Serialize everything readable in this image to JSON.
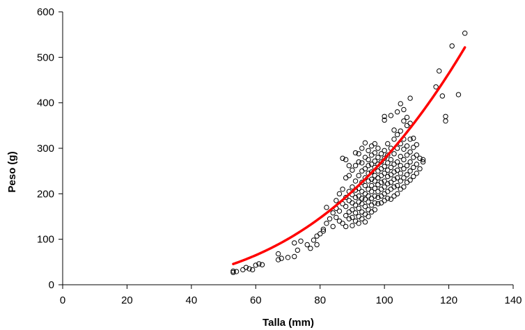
{
  "chart_data": {
    "type": "scatter",
    "title": "",
    "xlabel": "Talla (mm)",
    "ylabel": "Peso (g)",
    "xlim": [
      0,
      140
    ],
    "ylim": [
      0,
      600
    ],
    "xticks": [
      0,
      20,
      40,
      60,
      80,
      100,
      120,
      140
    ],
    "yticks": [
      0,
      100,
      200,
      300,
      400,
      500,
      600
    ],
    "grid": false,
    "legend": "none",
    "colors": {
      "points": "#000000",
      "trend": "#ff0000"
    },
    "series": [
      {
        "kind": "points",
        "marker": "open-circle",
        "points": [
          [
            53,
            27
          ],
          [
            53,
            30
          ],
          [
            54,
            29
          ],
          [
            56,
            33
          ],
          [
            57,
            38
          ],
          [
            58,
            35
          ],
          [
            59,
            33
          ],
          [
            60,
            43
          ],
          [
            61,
            46
          ],
          [
            62,
            44
          ],
          [
            67,
            55
          ],
          [
            67,
            68
          ],
          [
            68,
            58
          ],
          [
            70,
            60
          ],
          [
            72,
            62
          ],
          [
            72,
            92
          ],
          [
            73,
            76
          ],
          [
            74,
            96
          ],
          [
            76,
            88
          ],
          [
            77,
            80
          ],
          [
            78,
            98
          ],
          [
            79,
            88
          ],
          [
            79,
            107
          ],
          [
            80,
            112
          ],
          [
            81,
            122
          ],
          [
            81,
            118
          ],
          [
            82,
            135
          ],
          [
            82,
            170
          ],
          [
            83,
            145
          ],
          [
            84,
            128
          ],
          [
            84,
            158
          ],
          [
            85,
            148
          ],
          [
            85,
            168
          ],
          [
            85,
            185
          ],
          [
            86,
            140
          ],
          [
            86,
            162
          ],
          [
            86,
            200
          ],
          [
            87,
            135
          ],
          [
            87,
            178
          ],
          [
            87,
            210
          ],
          [
            87,
            278
          ],
          [
            88,
            128
          ],
          [
            88,
            152
          ],
          [
            88,
            172
          ],
          [
            88,
            192
          ],
          [
            88,
            235
          ],
          [
            88,
            275
          ],
          [
            89,
            145
          ],
          [
            89,
            160
          ],
          [
            89,
            185
          ],
          [
            89,
            205
          ],
          [
            89,
            240
          ],
          [
            89,
            262
          ],
          [
            90,
            130
          ],
          [
            90,
            148
          ],
          [
            90,
            165
          ],
          [
            90,
            180
          ],
          [
            90,
            198
          ],
          [
            90,
            215
          ],
          [
            90,
            252
          ],
          [
            91,
            140
          ],
          [
            91,
            158
          ],
          [
            91,
            175
          ],
          [
            91,
            192
          ],
          [
            91,
            208
          ],
          [
            91,
            228
          ],
          [
            91,
            262
          ],
          [
            91,
            290
          ],
          [
            92,
            135
          ],
          [
            92,
            150
          ],
          [
            92,
            168
          ],
          [
            92,
            182
          ],
          [
            92,
            195
          ],
          [
            92,
            212
          ],
          [
            92,
            240
          ],
          [
            92,
            270
          ],
          [
            92,
            288
          ],
          [
            93,
            145
          ],
          [
            93,
            160
          ],
          [
            93,
            178
          ],
          [
            93,
            190
          ],
          [
            93,
            205
          ],
          [
            93,
            225
          ],
          [
            93,
            250
          ],
          [
            93,
            268
          ],
          [
            93,
            300
          ],
          [
            94,
            138
          ],
          [
            94,
            155
          ],
          [
            94,
            172
          ],
          [
            94,
            188
          ],
          [
            94,
            200
          ],
          [
            94,
            218
          ],
          [
            94,
            235
          ],
          [
            94,
            255
          ],
          [
            94,
            280
          ],
          [
            94,
            312
          ],
          [
            95,
            150
          ],
          [
            95,
            165
          ],
          [
            95,
            182
          ],
          [
            95,
            195
          ],
          [
            95,
            210
          ],
          [
            95,
            228
          ],
          [
            95,
            245
          ],
          [
            95,
            262
          ],
          [
            95,
            275
          ],
          [
            95,
            295
          ],
          [
            96,
            160
          ],
          [
            96,
            175
          ],
          [
            96,
            190
          ],
          [
            96,
            205
          ],
          [
            96,
            218
          ],
          [
            96,
            232
          ],
          [
            96,
            248
          ],
          [
            96,
            265
          ],
          [
            96,
            285
          ],
          [
            96,
            305
          ],
          [
            97,
            165
          ],
          [
            97,
            180
          ],
          [
            97,
            195
          ],
          [
            97,
            212
          ],
          [
            97,
            228
          ],
          [
            97,
            240
          ],
          [
            97,
            258
          ],
          [
            97,
            272
          ],
          [
            97,
            290
          ],
          [
            97,
            310
          ],
          [
            98,
            178
          ],
          [
            98,
            192
          ],
          [
            98,
            205
          ],
          [
            98,
            220
          ],
          [
            98,
            235
          ],
          [
            98,
            250
          ],
          [
            98,
            265
          ],
          [
            98,
            280
          ],
          [
            98,
            300
          ],
          [
            99,
            180
          ],
          [
            99,
            195
          ],
          [
            99,
            210
          ],
          [
            99,
            225
          ],
          [
            99,
            240
          ],
          [
            99,
            255
          ],
          [
            99,
            270
          ],
          [
            99,
            288
          ],
          [
            100,
            185
          ],
          [
            100,
            200
          ],
          [
            100,
            215
          ],
          [
            100,
            228
          ],
          [
            100,
            245
          ],
          [
            100,
            260
          ],
          [
            100,
            278
          ],
          [
            100,
            295
          ],
          [
            100,
            362
          ],
          [
            100,
            370
          ],
          [
            101,
            190
          ],
          [
            101,
            205
          ],
          [
            101,
            222
          ],
          [
            101,
            238
          ],
          [
            101,
            252
          ],
          [
            101,
            268
          ],
          [
            101,
            285
          ],
          [
            101,
            310
          ],
          [
            102,
            188
          ],
          [
            102,
            210
          ],
          [
            102,
            225
          ],
          [
            102,
            242
          ],
          [
            102,
            258
          ],
          [
            102,
            275
          ],
          [
            102,
            300
          ],
          [
            102,
            372
          ],
          [
            103,
            195
          ],
          [
            103,
            215
          ],
          [
            103,
            232
          ],
          [
            103,
            248
          ],
          [
            103,
            265
          ],
          [
            103,
            288
          ],
          [
            103,
            320
          ],
          [
            103,
            340
          ],
          [
            104,
            200
          ],
          [
            104,
            218
          ],
          [
            104,
            235
          ],
          [
            104,
            252
          ],
          [
            104,
            270
          ],
          [
            104,
            300
          ],
          [
            104,
            330
          ],
          [
            104,
            380
          ],
          [
            105,
            210
          ],
          [
            105,
            228
          ],
          [
            105,
            245
          ],
          [
            105,
            262
          ],
          [
            105,
            282
          ],
          [
            105,
            310
          ],
          [
            105,
            338
          ],
          [
            105,
            398
          ],
          [
            106,
            215
          ],
          [
            106,
            235
          ],
          [
            106,
            255
          ],
          [
            106,
            275
          ],
          [
            106,
            298
          ],
          [
            106,
            320
          ],
          [
            106,
            360
          ],
          [
            106,
            385
          ],
          [
            107,
            225
          ],
          [
            107,
            242
          ],
          [
            107,
            262
          ],
          [
            107,
            285
          ],
          [
            107,
            305
          ],
          [
            107,
            350
          ],
          [
            107,
            368
          ],
          [
            108,
            230
          ],
          [
            108,
            250
          ],
          [
            108,
            270
          ],
          [
            108,
            292
          ],
          [
            108,
            320
          ],
          [
            108,
            355
          ],
          [
            108,
            410
          ],
          [
            109,
            238
          ],
          [
            109,
            258
          ],
          [
            109,
            280
          ],
          [
            109,
            302
          ],
          [
            109,
            322
          ],
          [
            110,
            245
          ],
          [
            110,
            265
          ],
          [
            110,
            285
          ],
          [
            110,
            308
          ],
          [
            111,
            255
          ],
          [
            111,
            278
          ],
          [
            112,
            275
          ],
          [
            112,
            270
          ],
          [
            116,
            435
          ],
          [
            117,
            470
          ],
          [
            118,
            415
          ],
          [
            119,
            370
          ],
          [
            119,
            360
          ],
          [
            121,
            525
          ],
          [
            123,
            418
          ],
          [
            125,
            553
          ]
        ]
      },
      {
        "kind": "trend",
        "type": "power",
        "coef": 0.0005785,
        "exp": 2.84,
        "x_range": [
          53,
          125
        ]
      }
    ]
  }
}
